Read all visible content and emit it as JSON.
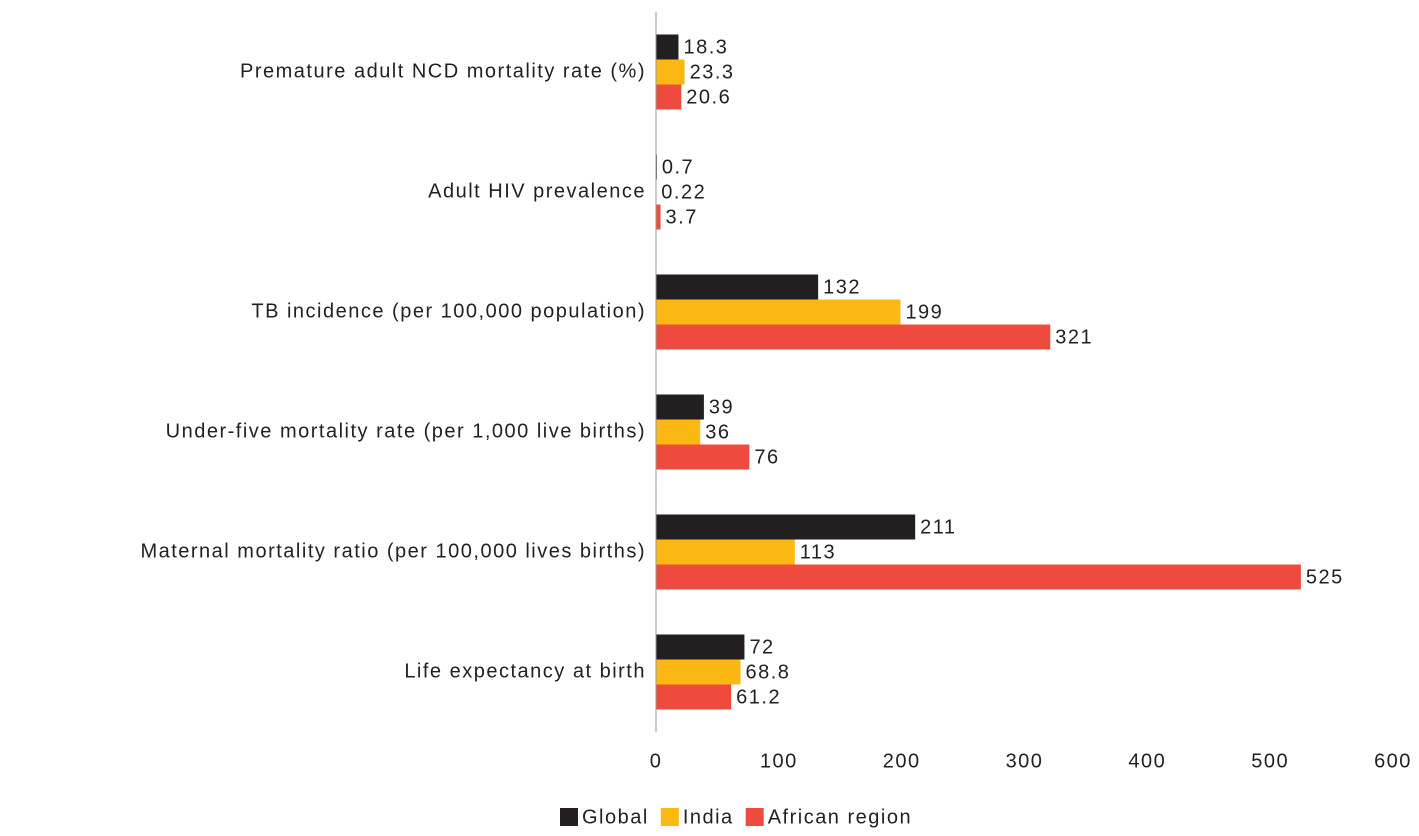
{
  "chart_data": {
    "type": "barh",
    "categories": [
      "Premature adult NCD mortality rate (%)",
      "Adult HIV prevalence",
      "TB incidence (per 100,000 population)",
      "Under-five mortality rate (per 1,000 live births)",
      "Maternal mortality ratio (per 100,000 lives births)",
      "Life expectancy at birth"
    ],
    "series": [
      {
        "name": "Global",
        "color": "#231f20",
        "values": [
          18.3,
          0.7,
          132,
          39,
          211,
          72
        ]
      },
      {
        "name": "India",
        "color": "#fbb813",
        "values": [
          23.3,
          0.22,
          199,
          36,
          113,
          68.8
        ]
      },
      {
        "name": "African region",
        "color": "#ee4b3e",
        "values": [
          20.6,
          3.7,
          321,
          76,
          525,
          61.2
        ]
      }
    ],
    "xlim": [
      0,
      600
    ],
    "xticks": [
      0,
      100,
      200,
      300,
      400,
      500,
      600
    ],
    "legend": "bottom"
  }
}
